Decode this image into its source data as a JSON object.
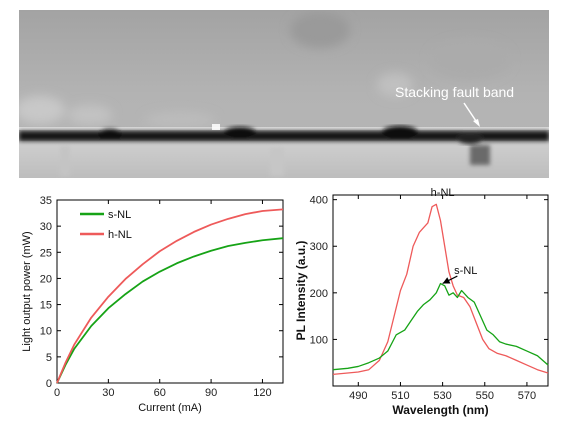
{
  "micrograph": {
    "label": "Stacking fault band"
  },
  "colors": {
    "s_nl": "#16a316",
    "h_nl": "#ee5a5a"
  },
  "chart_data": [
    {
      "type": "line",
      "xlabel": "Current (mA)",
      "ylabel": "Light output power (mW)",
      "xlim": [
        0,
        132
      ],
      "ylim": [
        0,
        35
      ],
      "xticks": [
        0,
        30,
        60,
        90,
        120
      ],
      "yticks": [
        0,
        5,
        10,
        15,
        20,
        25,
        30,
        35
      ],
      "grid": false,
      "legend_position": "top-left",
      "series": [
        {
          "name": "s-NL",
          "color": "#16a316",
          "x": [
            0,
            5,
            10,
            20,
            30,
            40,
            50,
            60,
            70,
            80,
            90,
            100,
            110,
            120,
            132
          ],
          "y": [
            0,
            3.5,
            6.5,
            10.9,
            14.3,
            17.0,
            19.4,
            21.3,
            22.9,
            24.2,
            25.3,
            26.2,
            26.8,
            27.3,
            27.7
          ]
        },
        {
          "name": "h-NL",
          "color": "#ee5a5a",
          "x": [
            0,
            5,
            10,
            20,
            30,
            40,
            50,
            60,
            70,
            80,
            90,
            100,
            110,
            120,
            132
          ],
          "y": [
            0,
            3.9,
            7.3,
            12.5,
            16.5,
            19.9,
            22.7,
            25.2,
            27.2,
            28.9,
            30.3,
            31.4,
            32.3,
            32.9,
            33.2
          ]
        }
      ]
    },
    {
      "type": "line",
      "xlabel": "Wavelength (nm)",
      "ylabel": "PL Intensity (a.u.)",
      "xlim": [
        478,
        580
      ],
      "ylim": [
        0,
        410
      ],
      "xticks": [
        490,
        510,
        530,
        550,
        570
      ],
      "yticks": [
        100,
        200,
        300,
        400
      ],
      "grid": false,
      "annotations": [
        {
          "text": "h-NL",
          "x": 530,
          "y": 408
        },
        {
          "text": "s-NL",
          "x": 541,
          "y": 240
        }
      ],
      "series": [
        {
          "name": "h-NL",
          "color": "#ee5a5a",
          "x": [
            478,
            485,
            490,
            495,
            500,
            504,
            507,
            510,
            513,
            516,
            519,
            521,
            523,
            525,
            527,
            529,
            531,
            533,
            535,
            537,
            540,
            543,
            546,
            549,
            552,
            556,
            560,
            565,
            570,
            575,
            580
          ],
          "y": [
            25,
            28,
            30,
            35,
            55,
            95,
            150,
            205,
            240,
            300,
            330,
            340,
            350,
            385,
            390,
            355,
            300,
            245,
            215,
            195,
            190,
            170,
            135,
            100,
            80,
            70,
            65,
            55,
            45,
            35,
            28
          ]
        },
        {
          "name": "s-NL",
          "color": "#16a316",
          "x": [
            478,
            485,
            490,
            495,
            500,
            504,
            508,
            512,
            515,
            518,
            521,
            524,
            527,
            529,
            531,
            533,
            535,
            537,
            539,
            542,
            545,
            548,
            551,
            554,
            557,
            560,
            565,
            570,
            575,
            580
          ],
          "y": [
            35,
            38,
            42,
            50,
            60,
            75,
            110,
            120,
            140,
            160,
            175,
            185,
            200,
            220,
            215,
            195,
            200,
            190,
            205,
            190,
            180,
            150,
            120,
            110,
            95,
            90,
            85,
            75,
            65,
            45
          ]
        }
      ]
    }
  ]
}
